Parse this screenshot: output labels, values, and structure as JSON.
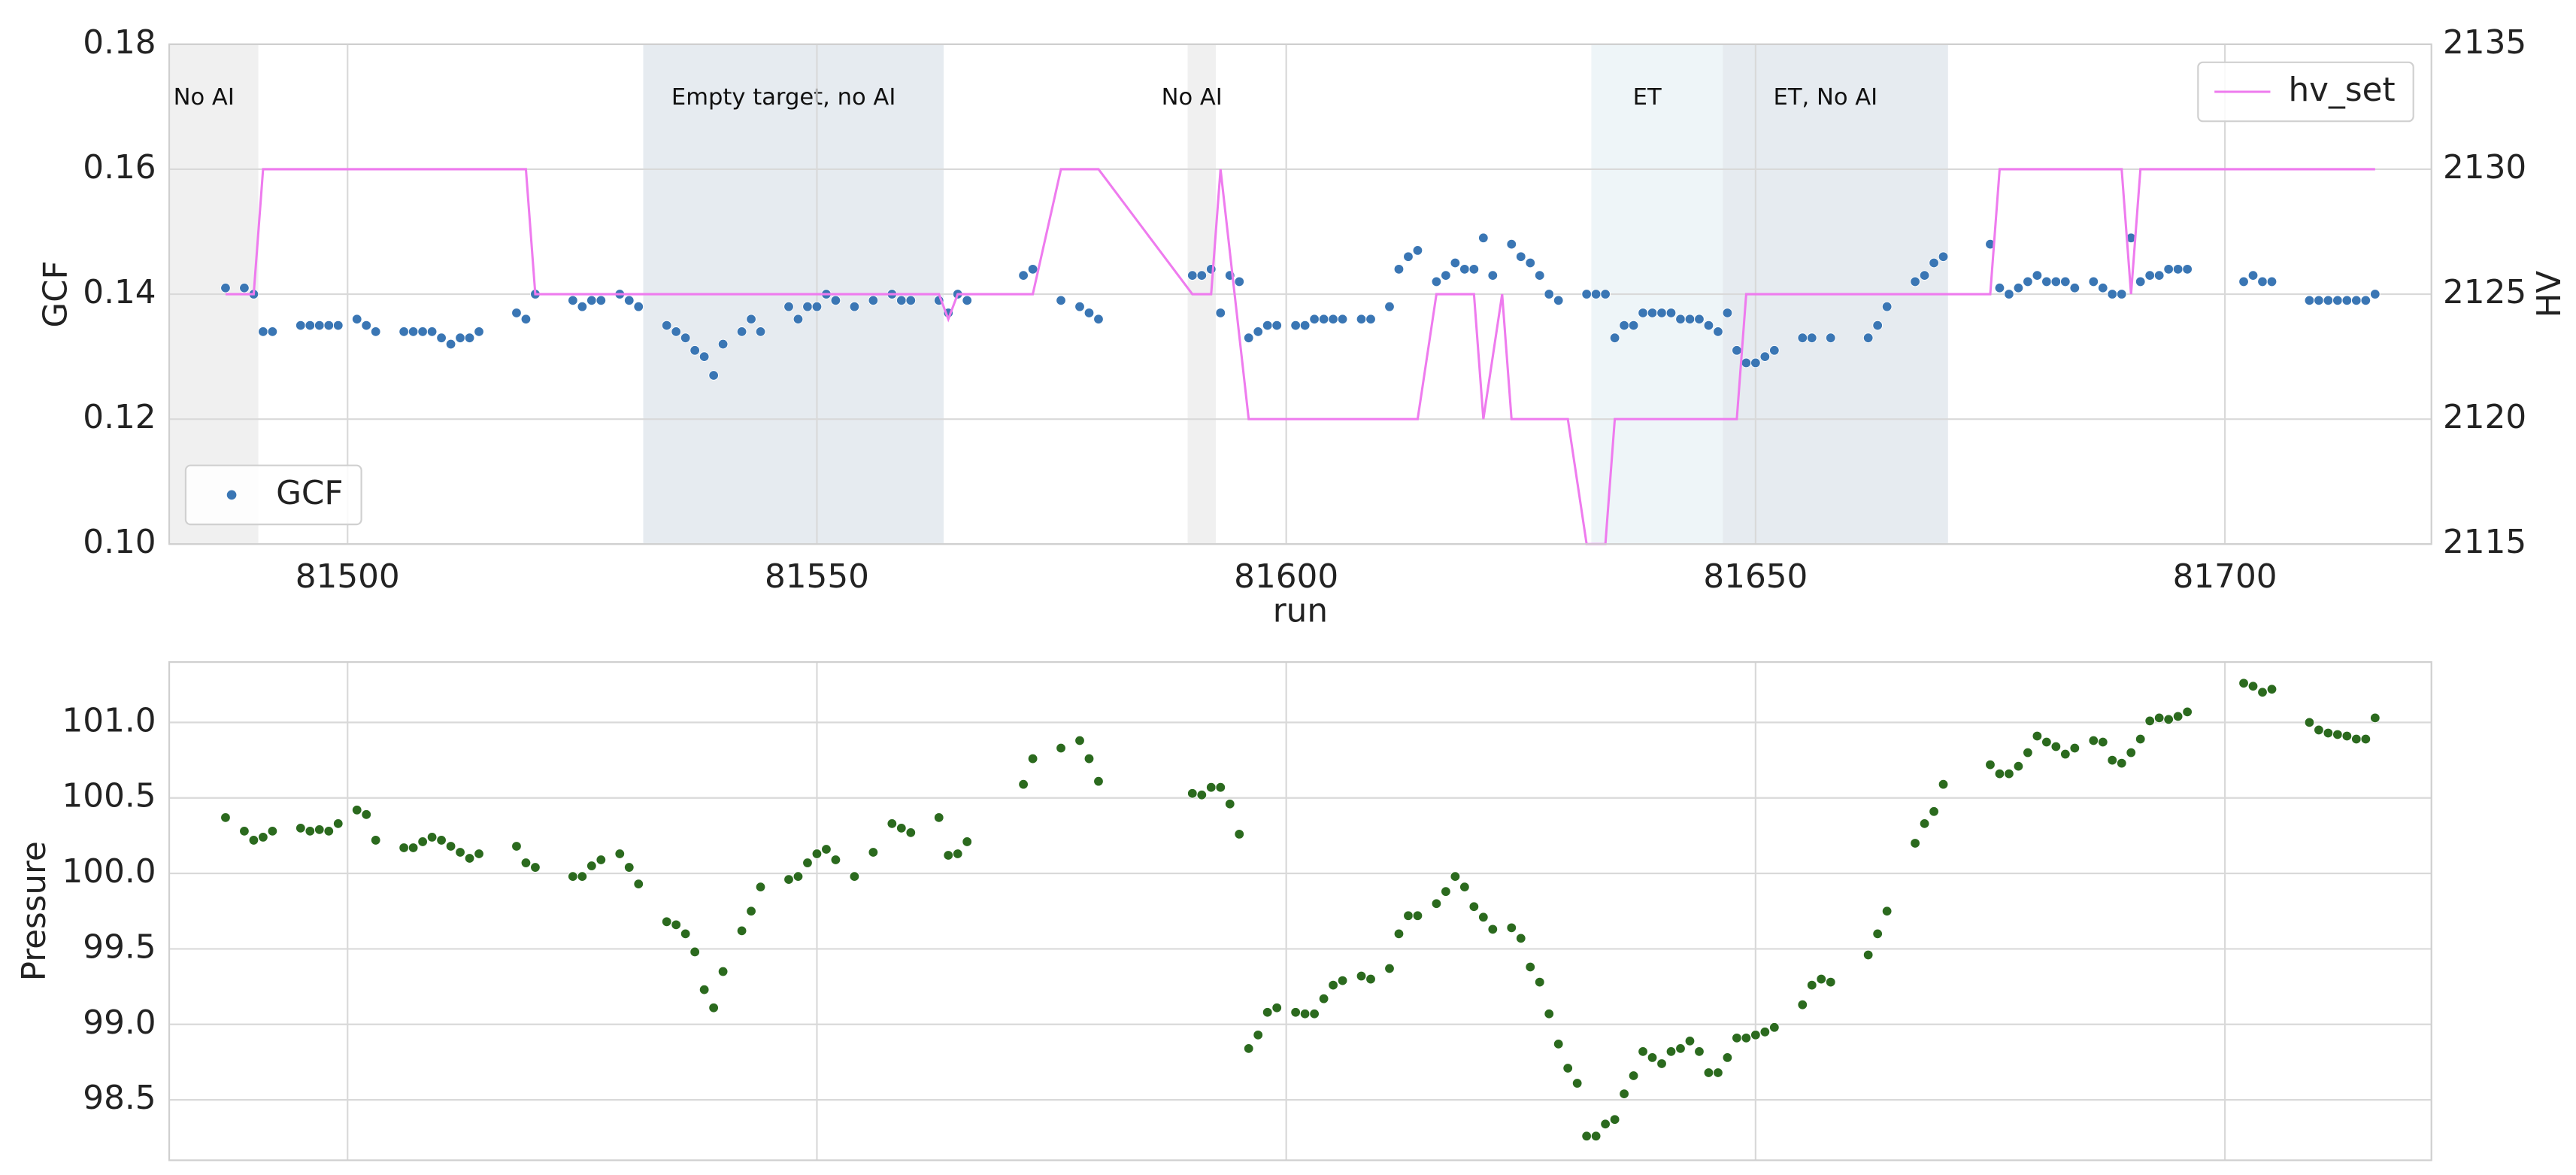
{
  "chart_data": [
    {
      "type": "scatter",
      "xlabel": "run",
      "ylabel": "GCF",
      "y2label": "HV",
      "xlim": [
        81481,
        81722
      ],
      "xticks": [
        81500,
        81550,
        81600,
        81650,
        81700
      ],
      "xtick_labels": true,
      "ylim": [
        0.1,
        0.18
      ],
      "yticks": [
        {
          "value": 0.1,
          "label": "0.10"
        },
        0.12,
        0.14,
        0.16,
        0.18
      ],
      "y2lim": [
        2115,
        2135
      ],
      "y2ticks": [
        2115,
        2120,
        2125,
        2130,
        2135
      ],
      "grid": true,
      "regions": [
        {
          "label": "No AI",
          "start": 81481,
          "end": 81490.5,
          "color": "#f0f0f0"
        },
        {
          "label": "Empty target, no AI",
          "start": 81531.5,
          "end": 81563.5,
          "color": "#e6ebf0"
        },
        {
          "label": "No AI",
          "start": 81589.5,
          "end": 81592.5,
          "color": "#f0f0f0"
        },
        {
          "label": "ET",
          "start": 81632.5,
          "end": 81646.5,
          "color": "#eef5f8"
        },
        {
          "label": "ET, No AI",
          "start": 81646.5,
          "end": 81670.5,
          "color": "#e6ebf0"
        }
      ],
      "series": [
        {
          "name": "GCF",
          "type": "scatter",
          "color": "#3a76b4",
          "legend_loc": "lower left",
          "x": [
            81487,
            81489,
            81490,
            81491,
            81492,
            81495,
            81496,
            81497,
            81498,
            81499,
            81501,
            81502,
            81503,
            81506,
            81507,
            81508,
            81509,
            81510,
            81511,
            81512,
            81513,
            81514,
            81518,
            81519,
            81520,
            81524,
            81525,
            81526,
            81527,
            81529,
            81530,
            81531,
            81534,
            81535,
            81536,
            81537,
            81538,
            81539,
            81540,
            81542,
            81543,
            81544,
            81547,
            81548,
            81549,
            81550,
            81551,
            81552,
            81554,
            81556,
            81558,
            81559,
            81560,
            81563,
            81564,
            81565,
            81566,
            81572,
            81573,
            81576,
            81578,
            81579,
            81580,
            81590,
            81591,
            81592,
            81593,
            81594,
            81595,
            81596,
            81597,
            81598,
            81599,
            81601,
            81602,
            81603,
            81604,
            81605,
            81606,
            81608,
            81609,
            81611,
            81612,
            81613,
            81614,
            81616,
            81617,
            81618,
            81619,
            81620,
            81621,
            81622,
            81624,
            81625,
            81626,
            81627,
            81628,
            81629,
            81632,
            81633,
            81634,
            81635,
            81636,
            81637,
            81638,
            81639,
            81640,
            81641,
            81642,
            81643,
            81644,
            81645,
            81646,
            81647,
            81648,
            81649,
            81650,
            81651,
            81652,
            81655,
            81656,
            81658,
            81662,
            81663,
            81664,
            81667,
            81668,
            81669,
            81670,
            81675,
            81676,
            81677,
            81678,
            81679,
            81680,
            81681,
            81682,
            81683,
            81684,
            81686,
            81687,
            81688,
            81689,
            81690,
            81691,
            81692,
            81693,
            81694,
            81695,
            81696,
            81702,
            81703,
            81704,
            81705,
            81709,
            81710,
            81711,
            81712,
            81713,
            81714,
            81715,
            81716
          ],
          "values": [
            0.141,
            0.141,
            0.14,
            0.134,
            0.134,
            0.135,
            0.135,
            0.135,
            0.135,
            0.135,
            0.136,
            0.135,
            0.134,
            0.134,
            0.134,
            0.134,
            0.134,
            0.133,
            0.132,
            0.133,
            0.133,
            0.134,
            0.137,
            0.136,
            0.14,
            0.139,
            0.138,
            0.139,
            0.139,
            0.14,
            0.139,
            0.138,
            0.135,
            0.134,
            0.133,
            0.131,
            0.13,
            0.127,
            0.132,
            0.134,
            0.136,
            0.134,
            0.138,
            0.136,
            0.138,
            0.138,
            0.14,
            0.139,
            0.138,
            0.139,
            0.14,
            0.139,
            0.139,
            0.139,
            0.137,
            0.14,
            0.139,
            0.143,
            0.144,
            0.139,
            0.138,
            0.137,
            0.136,
            0.143,
            0.143,
            0.144,
            0.137,
            0.143,
            0.142,
            0.133,
            0.134,
            0.135,
            0.135,
            0.135,
            0.135,
            0.136,
            0.136,
            0.136,
            0.136,
            0.136,
            0.136,
            0.138,
            0.144,
            0.146,
            0.147,
            0.142,
            0.143,
            0.145,
            0.144,
            0.144,
            0.149,
            0.143,
            0.148,
            0.146,
            0.145,
            0.143,
            0.14,
            0.139,
            0.14,
            0.14,
            0.14,
            0.133,
            0.135,
            0.135,
            0.137,
            0.137,
            0.137,
            0.137,
            0.136,
            0.136,
            0.136,
            0.135,
            0.134,
            0.137,
            0.131,
            0.129,
            0.129,
            0.13,
            0.131,
            0.133,
            0.133,
            0.133,
            0.133,
            0.135,
            0.138,
            0.142,
            0.143,
            0.145,
            0.146,
            0.148,
            0.141,
            0.14,
            0.141,
            0.142,
            0.143,
            0.142,
            0.142,
            0.142,
            0.141,
            0.142,
            0.141,
            0.14,
            0.14,
            0.149,
            0.142,
            0.143,
            0.143,
            0.144,
            0.144,
            0.144,
            0.142,
            0.143,
            0.142,
            0.142,
            0.139,
            0.139,
            0.139,
            0.139,
            0.139,
            0.139,
            0.139,
            0.14
          ]
        },
        {
          "name": "hv_set",
          "type": "line",
          "axis": "y2",
          "color": "#ee7bee",
          "legend_loc": "upper right",
          "x": [
            81487,
            81490,
            81491,
            81519,
            81520,
            81563,
            81564,
            81565,
            81573,
            81576,
            81580,
            81590,
            81592,
            81593,
            81596,
            81614,
            81616,
            81620,
            81621,
            81623,
            81624,
            81630,
            81632,
            81634,
            81635,
            81648,
            81649,
            81675,
            81676,
            81689,
            81690,
            81691,
            81716
          ],
          "values": [
            2125,
            2125,
            2130,
            2130,
            2125,
            2125,
            2124,
            2125,
            2125,
            2130,
            2130,
            2125,
            2125,
            2130,
            2120,
            2120,
            2125,
            2125,
            2120,
            2125,
            2120,
            2120,
            2115,
            2115,
            2120,
            2120,
            2125,
            2125,
            2130,
            2130,
            2125,
            2130,
            2130
          ]
        }
      ]
    },
    {
      "type": "scatter",
      "ylabel": "Pressure",
      "xlim": [
        81481,
        81722
      ],
      "xticks": [
        81500,
        81550,
        81600,
        81650,
        81700
      ],
      "xtick_labels": false,
      "ylim": [
        98.1,
        101.4
      ],
      "yticks": [
        98.5,
        {
          "value": 99,
          "label": "99.0"
        },
        99.5,
        {
          "value": 100,
          "label": "100.0"
        },
        100.5,
        {
          "value": 101,
          "label": "101.0"
        }
      ],
      "grid": true,
      "series": [
        {
          "name": "Pressure",
          "type": "scatter",
          "color": "#2b6a1e",
          "x": [
            81487,
            81489,
            81490,
            81491,
            81492,
            81495,
            81496,
            81497,
            81498,
            81499,
            81501,
            81502,
            81503,
            81506,
            81507,
            81508,
            81509,
            81510,
            81511,
            81512,
            81513,
            81514,
            81518,
            81519,
            81520,
            81524,
            81525,
            81526,
            81527,
            81529,
            81530,
            81531,
            81534,
            81535,
            81536,
            81537,
            81538,
            81539,
            81540,
            81542,
            81543,
            81544,
            81547,
            81548,
            81549,
            81550,
            81551,
            81552,
            81554,
            81556,
            81558,
            81559,
            81560,
            81563,
            81564,
            81565,
            81566,
            81572,
            81573,
            81576,
            81578,
            81579,
            81580,
            81590,
            81591,
            81592,
            81593,
            81594,
            81595,
            81596,
            81597,
            81598,
            81599,
            81601,
            81602,
            81603,
            81604,
            81605,
            81606,
            81608,
            81609,
            81611,
            81612,
            81613,
            81614,
            81616,
            81617,
            81618,
            81619,
            81620,
            81621,
            81622,
            81624,
            81625,
            81626,
            81627,
            81628,
            81629,
            81630,
            81631,
            81632,
            81633,
            81634,
            81635,
            81636,
            81637,
            81638,
            81639,
            81640,
            81641,
            81642,
            81643,
            81644,
            81645,
            81646,
            81647,
            81648,
            81649,
            81650,
            81651,
            81652,
            81655,
            81656,
            81657,
            81658,
            81662,
            81663,
            81664,
            81667,
            81668,
            81669,
            81670,
            81675,
            81676,
            81677,
            81678,
            81679,
            81680,
            81681,
            81682,
            81683,
            81684,
            81686,
            81687,
            81688,
            81689,
            81690,
            81691,
            81692,
            81693,
            81694,
            81695,
            81696,
            81702,
            81703,
            81704,
            81705,
            81709,
            81710,
            81711,
            81712,
            81713,
            81714,
            81715,
            81716
          ],
          "values": [
            100.37,
            100.28,
            100.22,
            100.24,
            100.28,
            100.3,
            100.28,
            100.29,
            100.28,
            100.33,
            100.42,
            100.39,
            100.22,
            100.17,
            100.17,
            100.21,
            100.24,
            100.22,
            100.18,
            100.14,
            100.1,
            100.13,
            100.18,
            100.07,
            100.04,
            99.98,
            99.98,
            100.05,
            100.09,
            100.13,
            100.04,
            99.93,
            99.68,
            99.66,
            99.6,
            99.48,
            99.23,
            99.11,
            99.35,
            99.62,
            99.75,
            99.91,
            99.96,
            99.98,
            100.07,
            100.13,
            100.16,
            100.09,
            99.98,
            100.14,
            100.33,
            100.3,
            100.27,
            100.37,
            100.12,
            100.13,
            100.21,
            100.59,
            100.76,
            100.83,
            100.88,
            100.76,
            100.61,
            100.53,
            100.52,
            100.57,
            100.57,
            100.46,
            100.26,
            98.84,
            98.93,
            99.08,
            99.11,
            99.08,
            99.07,
            99.07,
            99.17,
            99.26,
            99.29,
            99.32,
            99.3,
            99.37,
            99.6,
            99.72,
            99.72,
            99.8,
            99.88,
            99.98,
            99.91,
            99.78,
            99.71,
            99.63,
            99.64,
            99.57,
            99.38,
            99.28,
            99.07,
            98.87,
            98.71,
            98.61,
            98.26,
            98.26,
            98.34,
            98.37,
            98.54,
            98.66,
            98.82,
            98.78,
            98.74,
            98.82,
            98.84,
            98.89,
            98.82,
            98.68,
            98.68,
            98.78,
            98.91,
            98.91,
            98.93,
            98.95,
            98.98,
            99.13,
            99.26,
            99.3,
            99.28,
            99.46,
            99.6,
            99.75,
            100.2,
            100.33,
            100.41,
            100.59,
            100.72,
            100.66,
            100.66,
            100.71,
            100.8,
            100.91,
            100.87,
            100.84,
            100.79,
            100.83,
            100.88,
            100.87,
            100.75,
            100.73,
            100.8,
            100.89,
            101.01,
            101.03,
            101.02,
            101.04,
            101.07,
            101.26,
            101.24,
            101.2,
            101.22,
            101.0,
            100.95,
            100.93,
            100.92,
            100.91,
            100.89,
            100.89,
            101.03
          ]
        }
      ]
    }
  ]
}
